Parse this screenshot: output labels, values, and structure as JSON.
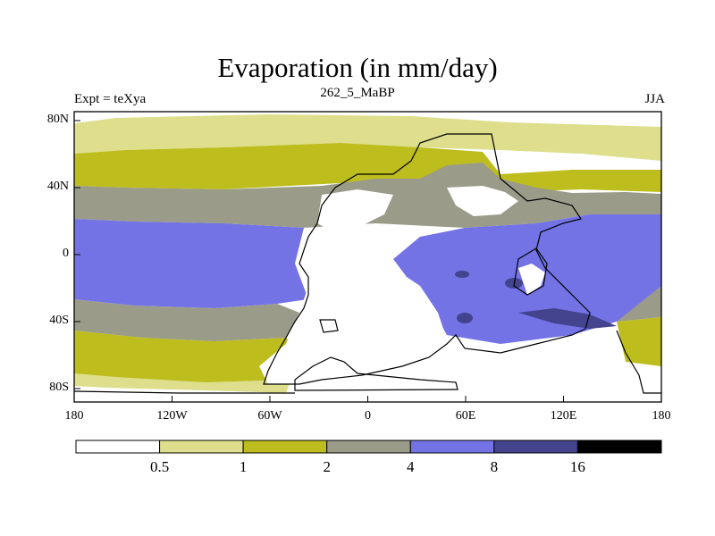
{
  "title": "Evaporation (in mm/day)",
  "subtitle_left": "Expt = teXya",
  "subtitle_center": "262_5_MaBP",
  "subtitle_right": "JJA",
  "lat_ticks": [
    {
      "value": 80,
      "label": "80N"
    },
    {
      "value": 40,
      "label": "40N"
    },
    {
      "value": 0,
      "label": "0"
    },
    {
      "value": -40,
      "label": "40S"
    },
    {
      "value": -80,
      "label": "80S"
    }
  ],
  "lon_ticks": [
    {
      "value": -180,
      "label": "180"
    },
    {
      "value": -120,
      "label": "120W"
    },
    {
      "value": -60,
      "label": "60W"
    },
    {
      "value": 0,
      "label": "0"
    },
    {
      "value": 60,
      "label": "60E"
    },
    {
      "value": 120,
      "label": "120E"
    },
    {
      "value": 180,
      "label": "180"
    }
  ],
  "colorbar": {
    "levels": [
      "0.5",
      "1",
      "2",
      "4",
      "8",
      "16"
    ],
    "colors": [
      "#ffffff",
      "#dede8c",
      "#bdbd1e",
      "#9b9b8a",
      "#7373e6",
      "#43438e",
      "#000000"
    ]
  }
}
